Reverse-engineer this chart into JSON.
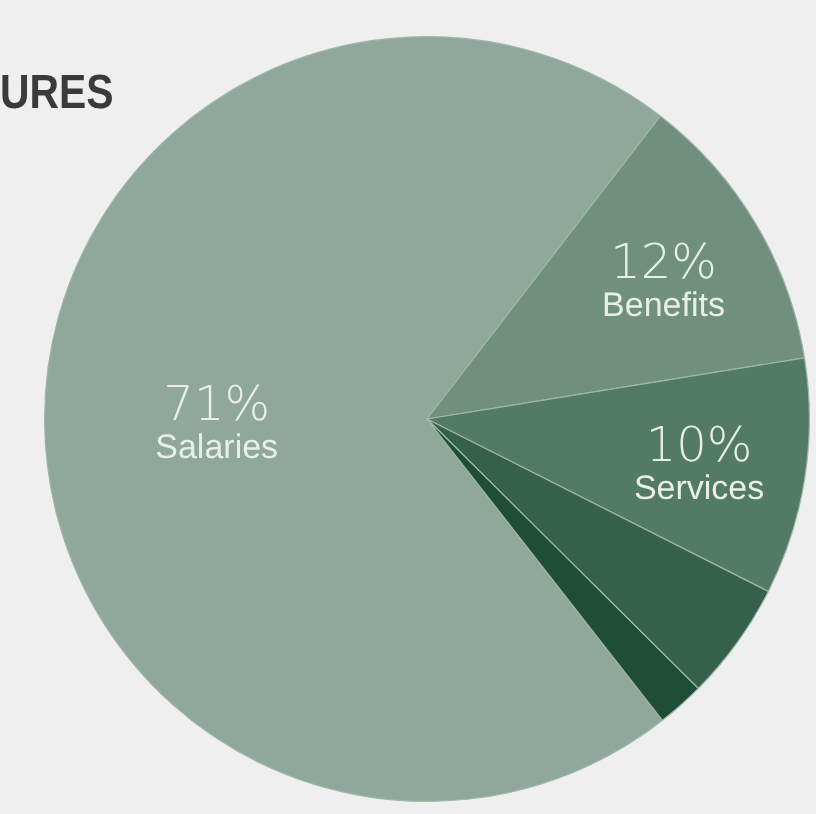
{
  "chart_data": {
    "type": "pie",
    "title": "URES",
    "categories": [
      "Salaries",
      "Benefits",
      "Services",
      null,
      null
    ],
    "values": [
      71,
      12,
      10,
      5,
      2
    ],
    "colors": [
      "#8fa89b",
      "#718f7f",
      "#527a66",
      "#35614c",
      "#1f4d36"
    ],
    "value_labels": [
      "71%",
      "12%",
      "10%",
      null,
      null
    ],
    "legend": false
  }
}
